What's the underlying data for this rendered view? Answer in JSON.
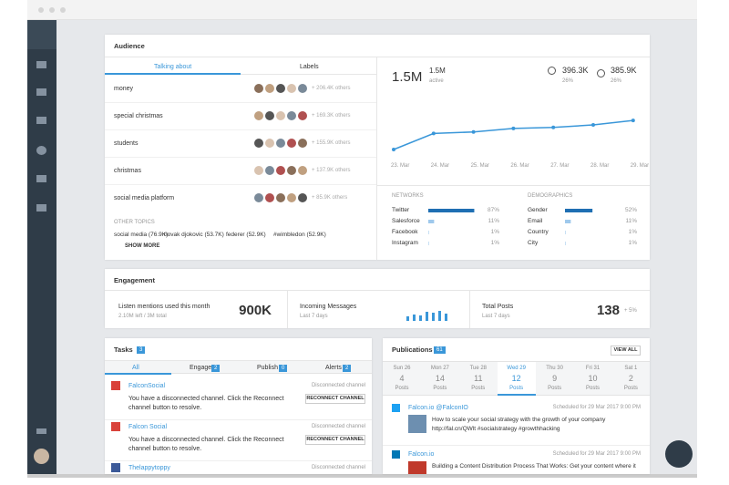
{
  "audience": {
    "title": "Audience",
    "tabs": [
      "Talking about",
      "Labels"
    ],
    "topics": [
      {
        "name": "money",
        "others": "+ 206.4K others"
      },
      {
        "name": "special christmas",
        "others": "+ 169.3K others"
      },
      {
        "name": "students",
        "others": "+ 155.9K others"
      },
      {
        "name": "christmas",
        "others": "+ 137.9K others"
      },
      {
        "name": "social media platform",
        "others": "+ 85.9K others"
      }
    ],
    "other_topics_label": "OTHER TOPICS",
    "other_topics": [
      "social media (76.9K)",
      "novak djokovic (53.7K)",
      "federer (52.9K)",
      "#wimbledon (52.9K)"
    ],
    "show_more": "SHOW MORE",
    "total": "1.5M",
    "active": {
      "value": "1.5M",
      "label": "active"
    },
    "female": {
      "value": "396.3K",
      "pct": "26%"
    },
    "male": {
      "value": "385.9K",
      "pct": "26%"
    },
    "chart_data": {
      "type": "line",
      "categories": [
        "23. Mar",
        "24. Mar",
        "25. Mar",
        "26. Mar",
        "27. Mar",
        "28. Mar",
        "29. Mar"
      ],
      "values": [
        20,
        52,
        55,
        62,
        64,
        69,
        78
      ],
      "ylim": [
        0,
        100
      ],
      "color": "#3a97d9"
    },
    "networks": {
      "title": "NETWORKS",
      "categories": [
        "Twitter",
        "Salesforce",
        "Facebook",
        "Instagram"
      ],
      "values": [
        87,
        11,
        1,
        1
      ],
      "value_labels": [
        "87%",
        "11%",
        "1%",
        "1%"
      ]
    },
    "demographics": {
      "title": "DEMOGRAPHICS",
      "categories": [
        "Gender",
        "Email",
        "Country",
        "City"
      ],
      "values": [
        52,
        11,
        1,
        1
      ],
      "value_labels": [
        "52%",
        "11%",
        "1%",
        "1%"
      ]
    }
  },
  "engagement": {
    "title": "Engagement",
    "listen": {
      "label": "Listen mentions used this month",
      "sub": "2.10M left / 3M total",
      "value": "900K"
    },
    "incoming": {
      "label": "Incoming Messages",
      "sub": "Last 7 days",
      "values": [
        5,
        7,
        6,
        10,
        9,
        11,
        8
      ]
    },
    "posts": {
      "label": "Total Posts",
      "sub": "Last 7 days",
      "value": 138,
      "change": "+ 5%"
    }
  },
  "tasks": {
    "title": "Tasks",
    "badge": 3,
    "tabs": [
      {
        "name": "All"
      },
      {
        "name": "Engage",
        "badge": 2
      },
      {
        "name": "Publish",
        "badge": 0
      },
      {
        "name": "Alerts",
        "badge": 2
      }
    ],
    "items": [
      {
        "channel": "FalconSocial",
        "status": "Disconnected channel",
        "text": "You have a disconnected channel. Click the Reconnect channel button to resolve.",
        "button": "RECONNECT CHANNEL"
      },
      {
        "channel": "Falcon Social",
        "status": "Disconnected channel",
        "text": "You have a disconnected channel. Click the Reconnect channel button to resolve.",
        "button": "RECONNECT CHANNEL"
      },
      {
        "channel": "Thelappytoppy",
        "status": "Disconnected channel"
      }
    ]
  },
  "publications": {
    "title": "Publications",
    "badge": 61,
    "view_all": "VIEW ALL",
    "days": [
      {
        "day": "Sun 26",
        "count": 4,
        "unit": "Posts"
      },
      {
        "day": "Mon 27",
        "count": 14,
        "unit": "Posts"
      },
      {
        "day": "Tue 28",
        "count": 11,
        "unit": "Posts"
      },
      {
        "day": "Wed 29",
        "count": 12,
        "unit": "Posts"
      },
      {
        "day": "Thu 30",
        "count": 9,
        "unit": "Posts"
      },
      {
        "day": "Fri 31",
        "count": 10,
        "unit": "Posts"
      },
      {
        "day": "Sat 1",
        "count": 2,
        "unit": "Posts"
      }
    ],
    "posts": [
      {
        "account": "Falcon.io @FalconIO",
        "scheduled": "Scheduled for 29 Mar 2017 9:00 PM",
        "text": "How to scale your social strategy with the growth of your company http://fal.cn/QWlt #socialstrategy #growthhacking"
      },
      {
        "account": "Falcon.io",
        "scheduled": "Scheduled for 29 Mar 2017 9:00 PM",
        "text": "Building a Content Distribution Process That Works: Get your content where it"
      }
    ]
  }
}
